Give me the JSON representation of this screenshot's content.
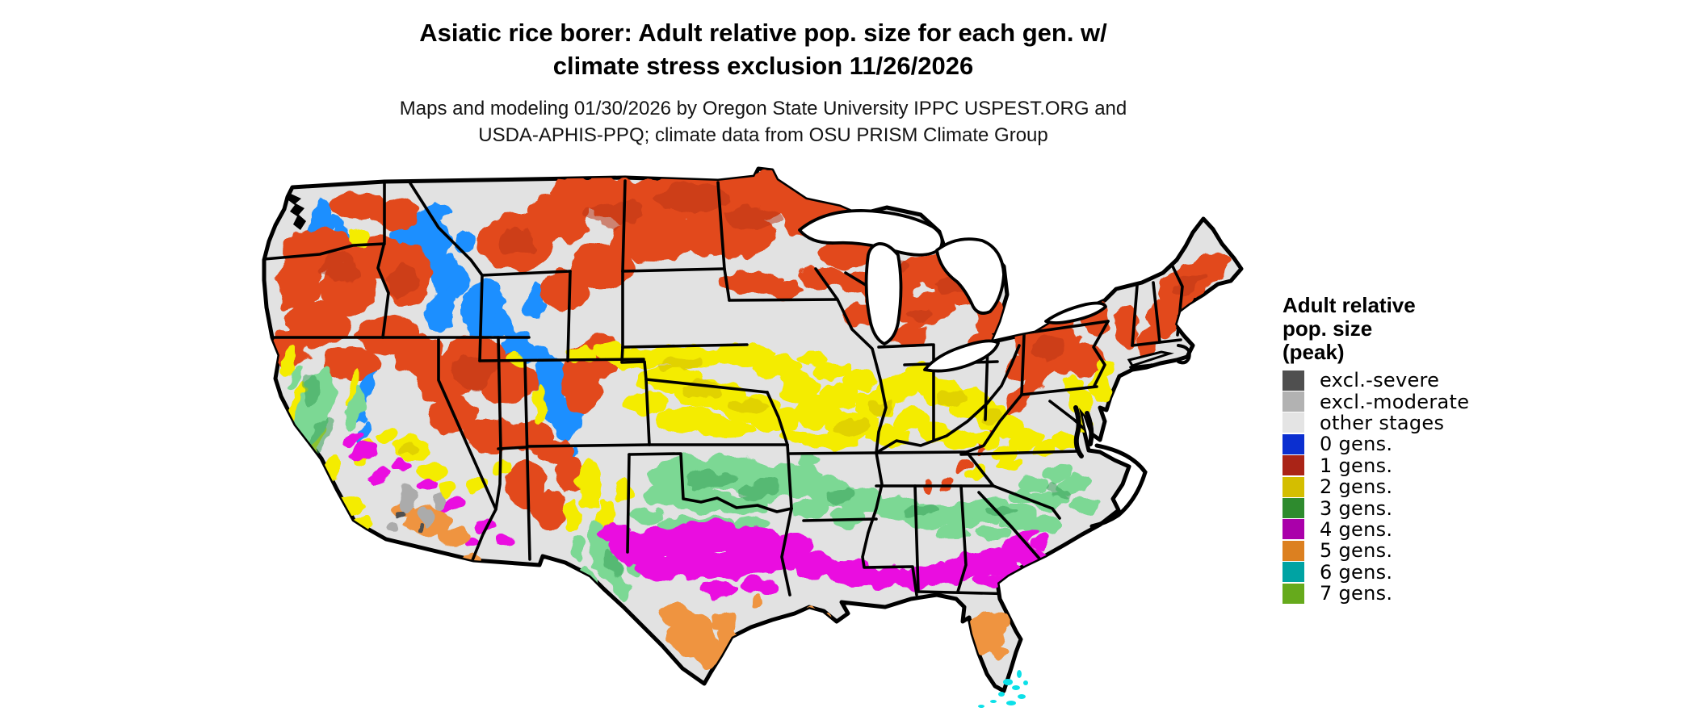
{
  "title": {
    "line1": "Asiatic rice borer: Adult relative pop. size for each gen. w/",
    "line2": "climate stress exclusion 11/26/2026"
  },
  "subtitle": {
    "line1": "Maps and modeling 01/30/2026 by Oregon State University IPPC USPEST.ORG and",
    "line2": "USDA-APHIS-PPQ; climate data from OSU PRISM Climate Group"
  },
  "legend": {
    "title_lines": [
      "Adult relative",
      "pop. size",
      "(peak)"
    ],
    "items": [
      {
        "label": "excl.-severe",
        "color": "#4f4f4f"
      },
      {
        "label": "excl.-moderate",
        "color": "#b2b2b2"
      },
      {
        "label": "other stages",
        "color": "#e4e4e4"
      },
      {
        "label": "0 gens.",
        "color": "#0b2fd0"
      },
      {
        "label": "1 gens.",
        "color": "#aa2417"
      },
      {
        "label": "2 gens.",
        "color": "#d4be00"
      },
      {
        "label": "3 gens.",
        "color": "#2e8b2e"
      },
      {
        "label": "4 gens.",
        "color": "#aa00aa"
      },
      {
        "label": "5 gens.",
        "color": "#dc8020"
      },
      {
        "label": "6 gens.",
        "color": "#00a3a3"
      },
      {
        "label": "7 gens.",
        "color": "#66aa1c"
      }
    ]
  },
  "map_palette": {
    "base_other_stages": "#e2e2e2",
    "outline": "#000000",
    "gens0": "#1e8fff",
    "gens0_dark": "#0c43d8",
    "gens1": "#e2491e",
    "gens1_dark": "#bc3514",
    "gens2": "#f4ec00",
    "gens2_dark": "#cdb800",
    "gens3": "#7cd894",
    "gens3_dark": "#38a159",
    "gens4": "#ea08e0",
    "gens5": "#ef9440",
    "gens6": "#0ce0e8",
    "excl_moderate": "#ababab",
    "excl_severe": "#4f4f4f",
    "water": "#ffffff"
  }
}
